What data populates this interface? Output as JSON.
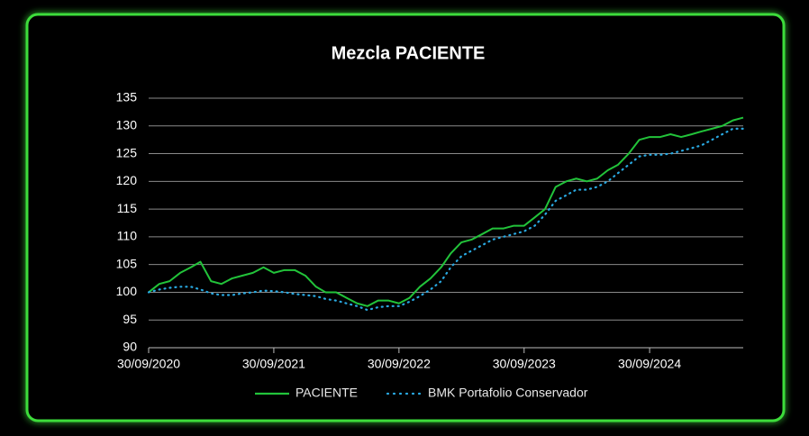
{
  "chart_data": {
    "type": "line",
    "title": "Mezcla PACIENTE",
    "x": [
      "30/09/2020",
      "31/10/2020",
      "30/11/2020",
      "31/12/2020",
      "31/01/2021",
      "28/02/2021",
      "31/03/2021",
      "30/04/2021",
      "31/05/2021",
      "30/06/2021",
      "31/07/2021",
      "31/08/2021",
      "30/09/2021",
      "31/10/2021",
      "30/11/2021",
      "31/12/2021",
      "31/01/2022",
      "28/02/2022",
      "31/03/2022",
      "30/04/2022",
      "31/05/2022",
      "30/06/2022",
      "31/07/2022",
      "31/08/2022",
      "30/09/2022",
      "31/10/2022",
      "30/11/2022",
      "31/12/2022",
      "31/01/2023",
      "28/02/2023",
      "31/03/2023",
      "30/04/2023",
      "31/05/2023",
      "30/06/2023",
      "31/07/2023",
      "31/08/2023",
      "30/09/2023",
      "31/10/2023",
      "30/11/2023",
      "31/12/2023",
      "31/01/2024",
      "29/02/2024",
      "31/03/2024",
      "30/04/2024",
      "31/05/2024",
      "30/06/2024",
      "31/07/2024",
      "31/08/2024",
      "30/09/2024",
      "31/10/2024",
      "30/11/2024",
      "31/12/2024",
      "31/01/2025",
      "28/02/2025",
      "31/03/2025",
      "30/04/2025",
      "31/05/2025",
      "30/06/2025"
    ],
    "series": [
      {
        "name": "PACIENTE",
        "color": "#22c33a",
        "style": "solid",
        "values": [
          100,
          101.5,
          102,
          103.5,
          104.5,
          105.5,
          102,
          101.5,
          102.5,
          103,
          103.5,
          104.5,
          103.5,
          104,
          104,
          103,
          101,
          100,
          100,
          99,
          98,
          97.5,
          98.5,
          98.5,
          98,
          99,
          101,
          102.5,
          104.5,
          107,
          109,
          109.5,
          110.5,
          111.5,
          111.5,
          112,
          112,
          113.5,
          115,
          119,
          120,
          120.5,
          120,
          120.5,
          122,
          123,
          125,
          127.5,
          128,
          128,
          128.5,
          128,
          128.5,
          129,
          129.5,
          130,
          131,
          131.5
        ]
      },
      {
        "name": "BMK Portafolio Conservador",
        "color": "#29a8e0",
        "style": "dotted",
        "values": [
          100,
          100.5,
          100.8,
          101,
          101,
          100.5,
          99.8,
          99.5,
          99.5,
          99.8,
          100,
          100.3,
          100.2,
          100,
          99.7,
          99.5,
          99.3,
          98.8,
          98.5,
          98,
          97.5,
          96.8,
          97.3,
          97.5,
          97.5,
          98.3,
          99.3,
          100.5,
          102,
          104.5,
          106.5,
          107.5,
          108.5,
          109.5,
          110,
          110.5,
          111,
          112,
          114,
          116.5,
          117.5,
          118.5,
          118.5,
          119,
          120,
          121.5,
          123,
          124.5,
          124.8,
          124.8,
          125,
          125.5,
          126,
          126.5,
          127.5,
          128.5,
          129.5,
          129.5
        ]
      }
    ],
    "xlim": [
      "30/09/2020",
      "30/06/2025"
    ],
    "xticks": [
      "30/09/2020",
      "30/09/2021",
      "30/09/2022",
      "30/09/2023",
      "30/09/2024"
    ],
    "ylim": [
      90,
      135
    ],
    "yticks": [
      90,
      95,
      100,
      105,
      110,
      115,
      120,
      125,
      130,
      135
    ],
    "grid": true,
    "legend": "bottom"
  }
}
